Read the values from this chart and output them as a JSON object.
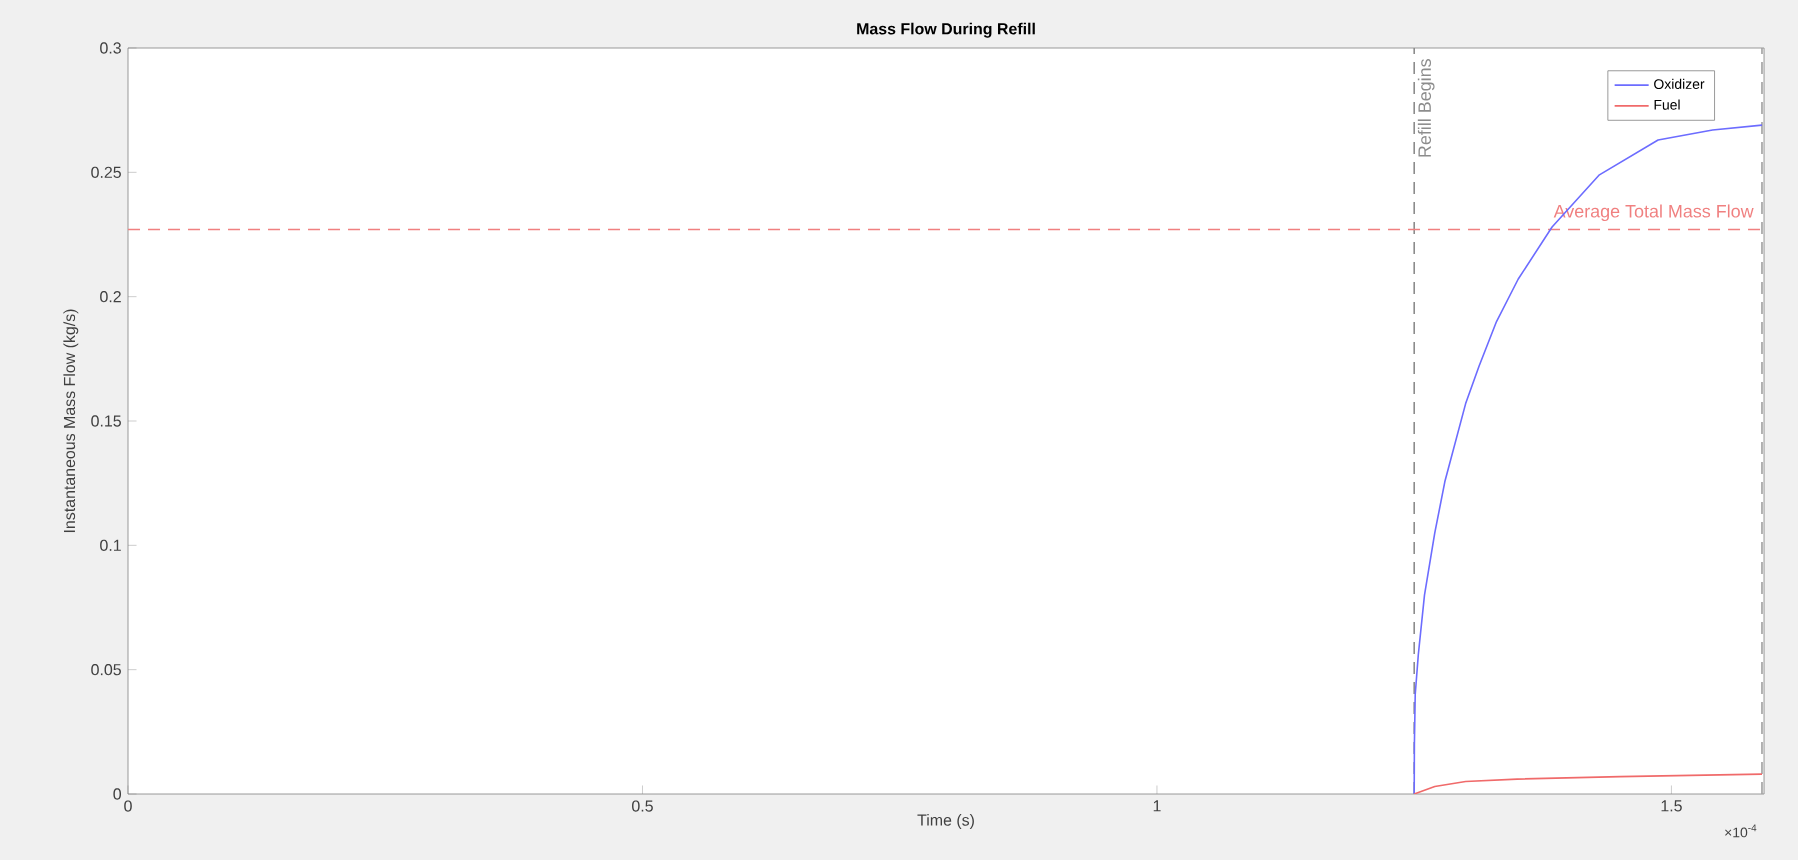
{
  "chart_data": {
    "type": "line",
    "title": "Mass Flow During Refill",
    "xlabel": "Time (s)",
    "ylabel": "Instantaneous Mass Flow (kg/s)",
    "xlim": [
      0,
      1.59
    ],
    "ylim": [
      0,
      0.3
    ],
    "xticks": [
      0,
      0.5,
      1,
      1.5
    ],
    "yticks": [
      0,
      0.05,
      0.1,
      0.15,
      0.2,
      0.25,
      0.3
    ],
    "grid": false,
    "legend": "top right",
    "marker": "none",
    "line_style": "solid",
    "annotations": [
      "×10$^{-4}$"
    ],
    "ref_lines": [
      {
        "axis": "x",
        "value": 1.25,
        "label": "Refill Begins",
        "color": "#8c8c8c",
        "line_style": "dashed"
      },
      {
        "axis": "y",
        "value": 0.227,
        "label": "Average Total Mass Flow",
        "color": "#f08080",
        "line_style": "dashed"
      },
      {
        "axis": "x",
        "value": 1.588,
        "color": "#a0a0a0",
        "line_style": "dashed"
      }
    ],
    "series": [
      {
        "name": "Oxidizer",
        "color": "#6c6cff",
        "x": [
          1.25,
          1.2502,
          1.251,
          1.254,
          1.26,
          1.27,
          1.28,
          1.3,
          1.313,
          1.33,
          1.351,
          1.384,
          1.43,
          1.487,
          1.54,
          1.588
        ],
        "values": [
          0,
          0.02,
          0.04,
          0.056,
          0.08,
          0.105,
          0.126,
          0.157,
          0.172,
          0.19,
          0.207,
          0.228,
          0.249,
          0.263,
          0.267,
          0.269
        ]
      },
      {
        "name": "Fuel",
        "color": "#f06a6a",
        "x": [
          1.25,
          1.27,
          1.3,
          1.35,
          1.45,
          1.588
        ],
        "values": [
          0,
          0.003,
          0.005,
          0.006,
          0.007,
          0.008
        ]
      }
    ]
  }
}
